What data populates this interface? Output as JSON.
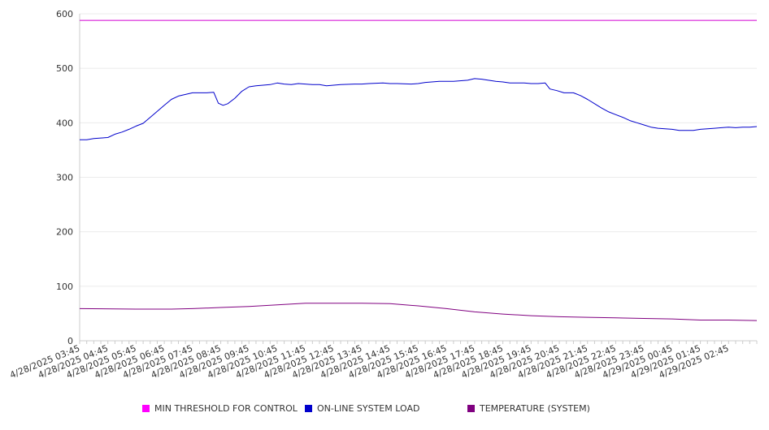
{
  "chart_data": {
    "type": "line",
    "title": "",
    "xlabel": "",
    "ylabel": "",
    "ylim": [
      0,
      600
    ],
    "y_ticks": [
      "0",
      "100",
      "200",
      "300",
      "400",
      "500",
      "600"
    ],
    "x_tick_labels": [
      "4/28/2025 03:45",
      "4/28/2025 04:45",
      "4/28/2025 05:45",
      "4/28/2025 06:45",
      "4/28/2025 07:45",
      "4/28/2025 08:45",
      "4/28/2025 09:45",
      "4/28/2025 10:45",
      "4/28/2025 11:45",
      "4/28/2025 12:45",
      "4/28/2025 13:45",
      "4/28/2025 14:45",
      "4/28/2025 15:45",
      "4/28/2025 16:45",
      "4/28/2025 17:45",
      "4/28/2025 18:45",
      "4/28/2025 19:45",
      "4/28/2025 20:45",
      "4/28/2025 21:45",
      "4/28/2025 22:45",
      "4/28/2025 23:45",
      "4/29/2025 00:45",
      "4/29/2025 01:45",
      "4/29/2025 02:45"
    ],
    "x_start": "4/28/2025 03:45",
    "x_end": "4/29/2025 03:45",
    "grid": "horizontal",
    "legend_position": "bottom",
    "series": [
      {
        "name": "MIN THRESHOLD FOR CONTROL",
        "color": "#d400d4",
        "points": [
          [
            "4/28/2025 03:45",
            588
          ],
          [
            "4/29/2025 03:45",
            588
          ]
        ]
      },
      {
        "name": "ON-LINE SYSTEM LOAD",
        "color": "#0000cc",
        "points": [
          [
            "4/28/2025 03:45",
            369
          ],
          [
            "4/28/2025 04:00",
            369
          ],
          [
            "4/28/2025 04:15",
            371
          ],
          [
            "4/28/2025 04:30",
            372
          ],
          [
            "4/28/2025 04:45",
            373
          ],
          [
            "4/28/2025 05:00",
            379
          ],
          [
            "4/28/2025 05:15",
            383
          ],
          [
            "4/28/2025 05:30",
            388
          ],
          [
            "4/28/2025 05:45",
            394
          ],
          [
            "4/28/2025 06:00",
            399
          ],
          [
            "4/28/2025 06:15",
            410
          ],
          [
            "4/28/2025 06:30",
            421
          ],
          [
            "4/28/2025 06:45",
            432
          ],
          [
            "4/28/2025 07:00",
            443
          ],
          [
            "4/28/2025 07:15",
            449
          ],
          [
            "4/28/2025 07:30",
            452
          ],
          [
            "4/28/2025 07:45",
            455
          ],
          [
            "4/28/2025 08:00",
            455
          ],
          [
            "4/28/2025 08:15",
            455
          ],
          [
            "4/28/2025 08:30",
            456
          ],
          [
            "4/28/2025 08:40",
            436
          ],
          [
            "4/28/2025 08:50",
            432
          ],
          [
            "4/28/2025 09:00",
            435
          ],
          [
            "4/28/2025 09:15",
            445
          ],
          [
            "4/28/2025 09:30",
            458
          ],
          [
            "4/28/2025 09:45",
            466
          ],
          [
            "4/28/2025 10:00",
            468
          ],
          [
            "4/28/2025 10:15",
            469
          ],
          [
            "4/28/2025 10:30",
            470
          ],
          [
            "4/28/2025 10:45",
            473
          ],
          [
            "4/28/2025 11:00",
            471
          ],
          [
            "4/28/2025 11:15",
            470
          ],
          [
            "4/28/2025 11:30",
            472
          ],
          [
            "4/28/2025 11:45",
            471
          ],
          [
            "4/28/2025 12:00",
            470
          ],
          [
            "4/28/2025 12:15",
            470
          ],
          [
            "4/28/2025 12:30",
            468
          ],
          [
            "4/28/2025 12:45",
            469
          ],
          [
            "4/28/2025 13:00",
            470
          ],
          [
            "4/28/2025 13:30",
            471
          ],
          [
            "4/28/2025 13:45",
            471
          ],
          [
            "4/28/2025 14:00",
            472
          ],
          [
            "4/28/2025 14:30",
            473
          ],
          [
            "4/28/2025 14:45",
            472
          ],
          [
            "4/28/2025 15:00",
            472
          ],
          [
            "4/28/2025 15:30",
            471
          ],
          [
            "4/28/2025 15:45",
            472
          ],
          [
            "4/28/2025 16:00",
            474
          ],
          [
            "4/28/2025 16:30",
            476
          ],
          [
            "4/28/2025 16:45",
            476
          ],
          [
            "4/28/2025 17:00",
            476
          ],
          [
            "4/28/2025 17:30",
            478
          ],
          [
            "4/28/2025 17:45",
            481
          ],
          [
            "4/28/2025 18:00",
            480
          ],
          [
            "4/28/2025 18:30",
            476
          ],
          [
            "4/28/2025 18:45",
            475
          ],
          [
            "4/28/2025 19:00",
            473
          ],
          [
            "4/28/2025 19:30",
            473
          ],
          [
            "4/28/2025 19:45",
            472
          ],
          [
            "4/28/2025 20:00",
            472
          ],
          [
            "4/28/2025 20:15",
            473
          ],
          [
            "4/28/2025 20:25",
            462
          ],
          [
            "4/28/2025 20:40",
            459
          ],
          [
            "4/28/2025 20:55",
            455
          ],
          [
            "4/28/2025 21:15",
            455
          ],
          [
            "4/28/2025 21:30",
            450
          ],
          [
            "4/28/2025 21:45",
            443
          ],
          [
            "4/28/2025 22:00",
            435
          ],
          [
            "4/28/2025 22:15",
            427
          ],
          [
            "4/28/2025 22:30",
            420
          ],
          [
            "4/28/2025 22:45",
            415
          ],
          [
            "4/28/2025 23:00",
            410
          ],
          [
            "4/28/2025 23:15",
            404
          ],
          [
            "4/28/2025 23:30",
            400
          ],
          [
            "4/28/2025 23:45",
            396
          ],
          [
            "4/29/2025 00:00",
            392
          ],
          [
            "4/29/2025 00:15",
            390
          ],
          [
            "4/29/2025 00:30",
            389
          ],
          [
            "4/29/2025 00:45",
            388
          ],
          [
            "4/29/2025 01:00",
            386
          ],
          [
            "4/29/2025 01:15",
            386
          ],
          [
            "4/29/2025 01:30",
            386
          ],
          [
            "4/29/2025 01:45",
            388
          ],
          [
            "4/29/2025 02:00",
            389
          ],
          [
            "4/29/2025 02:15",
            390
          ],
          [
            "4/29/2025 02:30",
            391
          ],
          [
            "4/29/2025 02:45",
            392
          ],
          [
            "4/29/2025 03:00",
            391
          ],
          [
            "4/29/2025 03:15",
            392
          ],
          [
            "4/29/2025 03:30",
            392
          ],
          [
            "4/29/2025 03:45",
            393
          ]
        ]
      },
      {
        "name": "TEMPERATURE (SYSTEM)",
        "color": "#800080",
        "points": [
          [
            "4/28/2025 03:45",
            59
          ],
          [
            "4/28/2025 05:45",
            58
          ],
          [
            "4/28/2025 07:00",
            58
          ],
          [
            "4/28/2025 07:45",
            59
          ],
          [
            "4/28/2025 08:45",
            61
          ],
          [
            "4/28/2025 09:45",
            63
          ],
          [
            "4/28/2025 10:45",
            66
          ],
          [
            "4/28/2025 11:45",
            69
          ],
          [
            "4/28/2025 12:45",
            69
          ],
          [
            "4/28/2025 13:45",
            69
          ],
          [
            "4/28/2025 14:45",
            68
          ],
          [
            "4/28/2025 15:45",
            64
          ],
          [
            "4/28/2025 16:45",
            59
          ],
          [
            "4/28/2025 17:45",
            53
          ],
          [
            "4/28/2025 18:45",
            49
          ],
          [
            "4/28/2025 19:45",
            46
          ],
          [
            "4/28/2025 20:45",
            44
          ],
          [
            "4/28/2025 21:45",
            43
          ],
          [
            "4/28/2025 22:45",
            42
          ],
          [
            "4/28/2025 23:45",
            41
          ],
          [
            "4/29/2025 00:45",
            40
          ],
          [
            "4/29/2025 01:45",
            38
          ],
          [
            "4/29/2025 02:45",
            38
          ],
          [
            "4/29/2025 03:45",
            37
          ]
        ]
      }
    ]
  },
  "legend": [
    {
      "label": "MIN THRESHOLD FOR CONTROL",
      "color": "#ff00ff"
    },
    {
      "label": "ON-LINE SYSTEM LOAD",
      "color": "#0000cc"
    },
    {
      "label": "TEMPERATURE (SYSTEM)",
      "color": "#800080"
    }
  ]
}
